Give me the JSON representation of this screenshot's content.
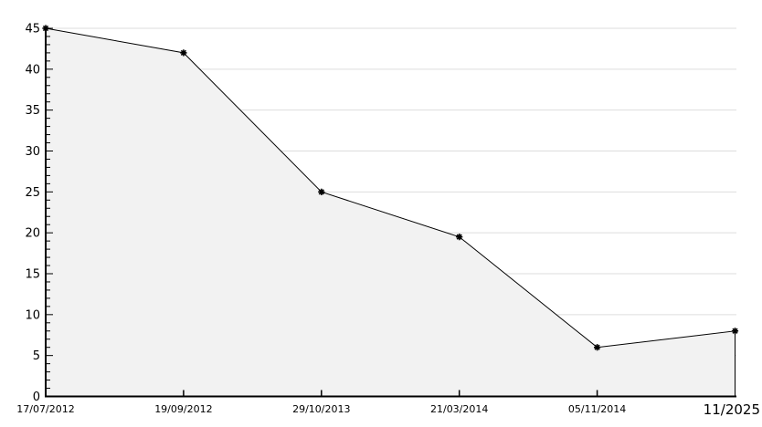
{
  "chart_data": {
    "type": "area",
    "title": "",
    "xlabel": "",
    "ylabel": "",
    "categories": [
      "17/07/2012",
      "19/09/2012",
      "29/10/2013",
      "21/03/2014",
      "05/11/2014",
      "11/2025"
    ],
    "values": [
      45,
      42,
      25,
      19.5,
      6,
      8
    ],
    "ylim": [
      0,
      45
    ],
    "ytick_major_step": 5,
    "ytick_minor_step": 1,
    "ytick_labels": [
      "0",
      "5",
      "10",
      "15",
      "20",
      "25",
      "30",
      "35",
      "40",
      "45"
    ],
    "grid": "horizontal-major",
    "legend": "none",
    "marker": "asterisk",
    "colors": {
      "line": "#000000",
      "marker": "#000000",
      "fill": "#f2f2f2",
      "grid": "#dddddd",
      "axis": "#000000",
      "text": "#000000",
      "background": "#ffffff"
    }
  }
}
